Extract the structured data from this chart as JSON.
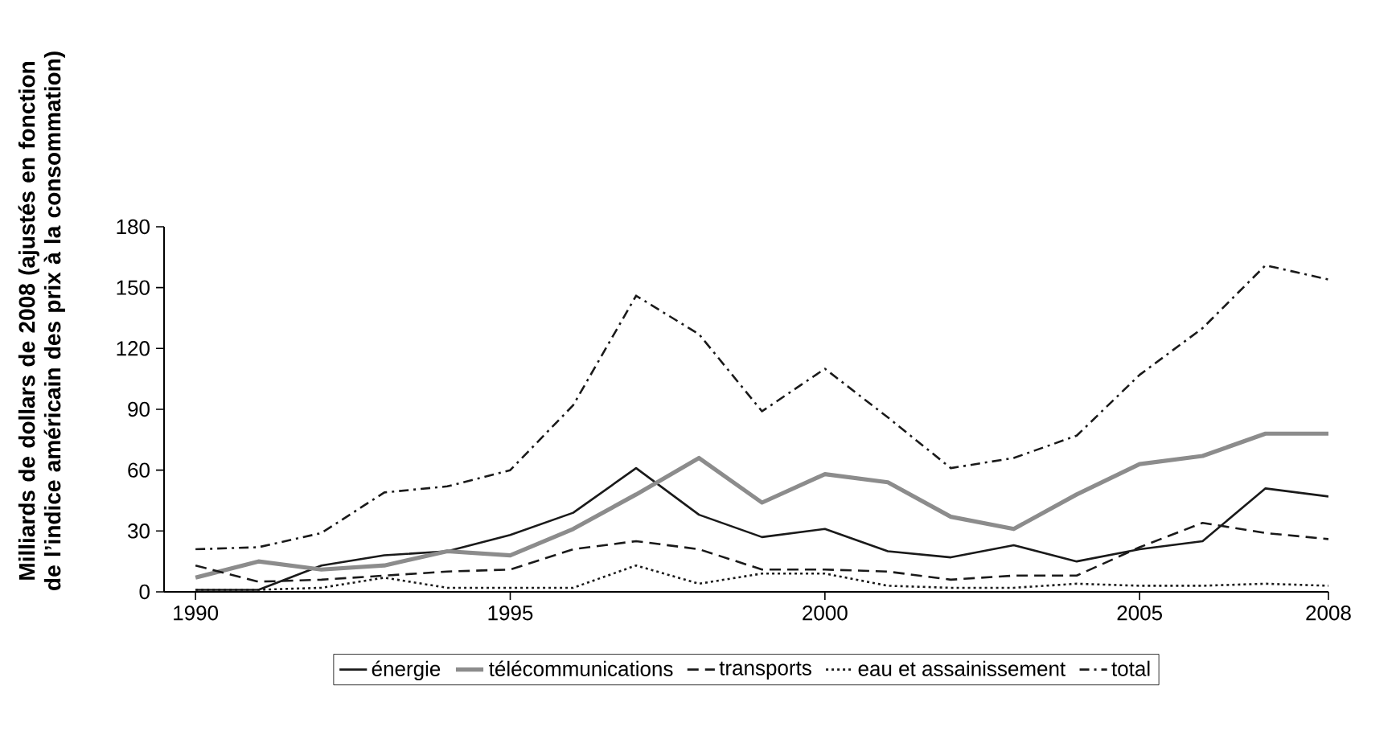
{
  "chart_data": {
    "type": "line",
    "ylabel": "Milliards de dollars de 2008 (ajustés en fonction de l’indice américain des prix à la consommation)",
    "x": [
      1990,
      1991,
      1992,
      1993,
      1994,
      1995,
      1996,
      1997,
      1998,
      1999,
      2000,
      2001,
      2002,
      2003,
      2004,
      2005,
      2006,
      2007,
      2008
    ],
    "xlim": [
      1989.5,
      2008
    ],
    "xticks": [
      1990,
      1995,
      2000,
      2005,
      2008
    ],
    "ylim": [
      0,
      180
    ],
    "yticks": [
      0,
      30,
      60,
      90,
      120,
      150,
      180
    ],
    "grid": false,
    "legend": "bottom",
    "series": [
      {
        "name": "énergie",
        "color": "#1a1a1a",
        "line_style": "solid",
        "values": [
          1,
          1,
          13,
          18,
          20,
          28,
          39,
          61,
          38,
          27,
          31,
          20,
          17,
          23,
          15,
          21,
          25,
          51,
          47
        ]
      },
      {
        "name": "télécommunications",
        "color": "#8c8c8c",
        "line_style": "solid",
        "values": [
          7,
          15,
          11,
          13,
          20,
          18,
          31,
          48,
          66,
          44,
          58,
          54,
          37,
          31,
          48,
          63,
          67,
          78,
          78
        ]
      },
      {
        "name": "transports",
        "color": "#1a1a1a",
        "line_style": "dashed",
        "values": [
          13,
          5,
          6,
          8,
          10,
          11,
          21,
          25,
          21,
          11,
          11,
          10,
          6,
          8,
          8,
          22,
          34,
          29,
          26
        ]
      },
      {
        "name": "eau et assainissement",
        "color": "#1a1a1a",
        "line_style": "dotted",
        "values": [
          1,
          1,
          2,
          7,
          2,
          2,
          2,
          13,
          4,
          9,
          9,
          3,
          2,
          2,
          4,
          3,
          3,
          4,
          3
        ]
      },
      {
        "name": "total",
        "color": "#1a1a1a",
        "line_style": "dashdot",
        "values": [
          21,
          22,
          29,
          49,
          52,
          60,
          92,
          146,
          127,
          89,
          110,
          86,
          61,
          66,
          77,
          107,
          130,
          161,
          154
        ]
      }
    ]
  }
}
